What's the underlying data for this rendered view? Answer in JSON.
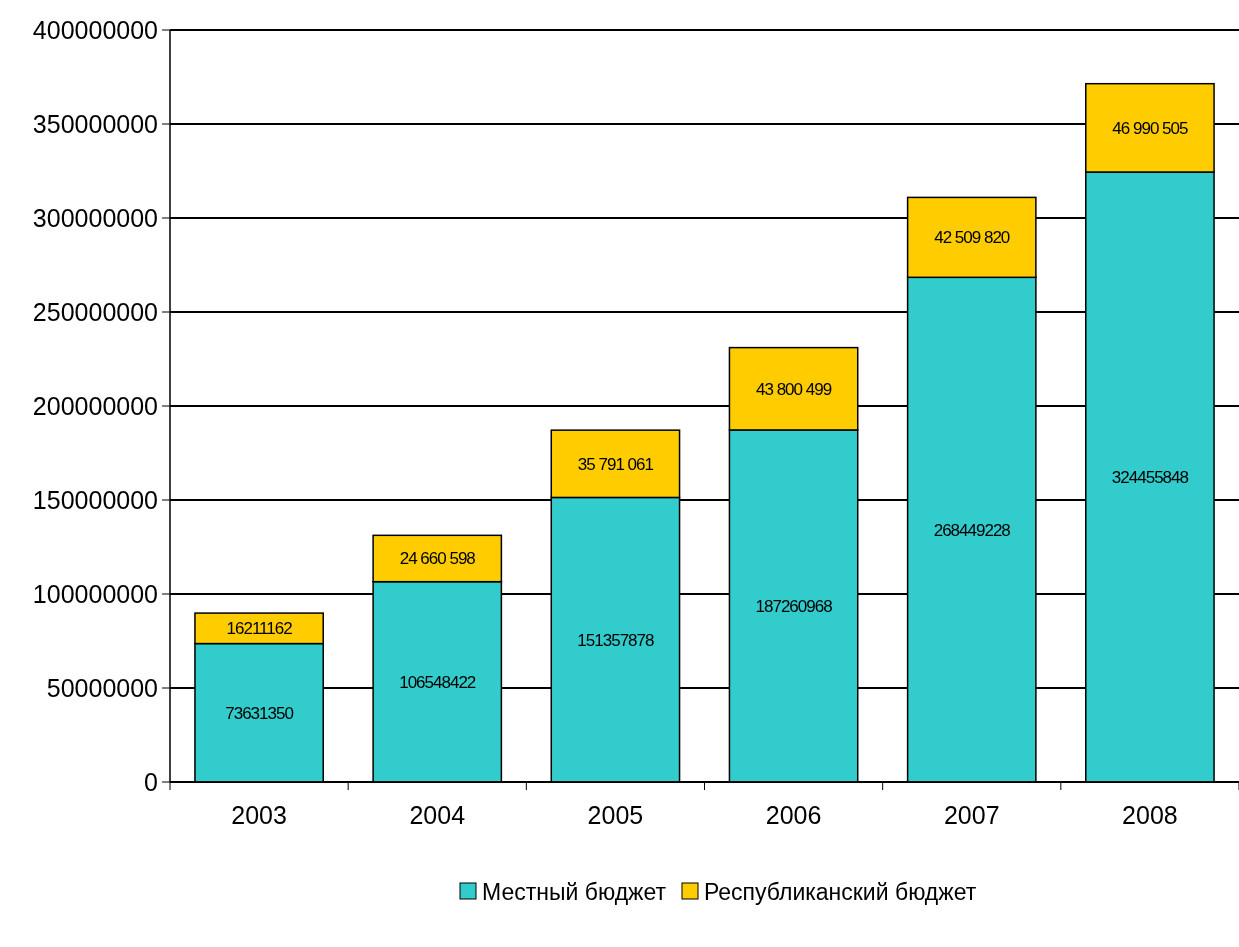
{
  "chart_data": {
    "type": "bar",
    "stacked": true,
    "categories": [
      "2003",
      "2004",
      "2005",
      "2006",
      "2007",
      "2008"
    ],
    "series": [
      {
        "name": "Местный бюджет",
        "color": "#33cccc",
        "values": [
          73631350,
          106548422,
          151357878,
          187260968,
          268449228,
          324455848
        ],
        "value_labels": [
          "73631350",
          "106548422",
          "151357878",
          "187260968",
          "268449228",
          "324455848"
        ]
      },
      {
        "name": "Республиканский бюджет",
        "color": "#ffcc00",
        "values": [
          16211162,
          24660598,
          35791061,
          43800499,
          42509820,
          46990505
        ],
        "value_labels": [
          "16211162",
          "24 660 598",
          "35 791 061",
          "43 800 499",
          "42 509 820",
          "46 990 505"
        ]
      }
    ],
    "ylim": [
      0,
      400000000
    ],
    "yticks": [
      0,
      50000000,
      100000000,
      150000000,
      200000000,
      250000000,
      300000000,
      350000000,
      400000000
    ],
    "grid": "y",
    "legend": "bottom"
  }
}
